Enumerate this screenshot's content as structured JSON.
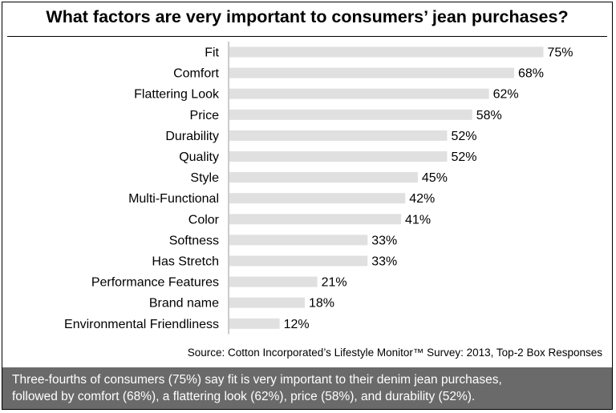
{
  "chart_data": {
    "type": "bar",
    "orientation": "horizontal",
    "title": "What factors are very important to consumers’ jean purchases?",
    "categories": [
      "Fit",
      "Comfort",
      "Flattering Look",
      "Price",
      "Durability",
      "Quality",
      "Style",
      "Multi-Functional",
      "Color",
      "Softness",
      "Has Stretch",
      "Performance Features",
      "Brand name",
      "Environmental Friendliness"
    ],
    "values": [
      75,
      68,
      62,
      58,
      52,
      52,
      45,
      42,
      41,
      33,
      33,
      21,
      18,
      12
    ],
    "value_labels": [
      "75%",
      "68%",
      "62%",
      "58%",
      "52%",
      "52%",
      "45%",
      "42%",
      "41%",
      "33%",
      "33%",
      "21%",
      "18%",
      "12%"
    ],
    "xlim": [
      0,
      100
    ],
    "bar_color": "#e0e0e0",
    "axis_color": "#999999",
    "grid": false,
    "source": "Source: Cotton Incorporated’s Lifestyle Monitor™ Survey: 2013, Top-2 Box Responses"
  },
  "caption": {
    "line1": "Three-fourths of consumers (75%) say fit is very  important to their denim jean purchases,",
    "line2": "followed by comfort (68%), a flattering look (62%), price (58%), and durability (52%)."
  }
}
